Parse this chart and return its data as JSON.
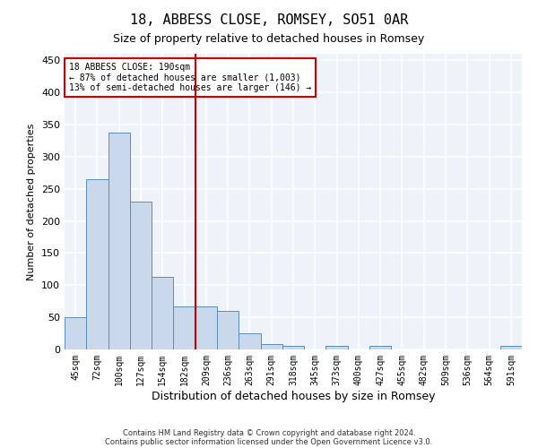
{
  "title": "18, ABBESS CLOSE, ROMSEY, SO51 0AR",
  "subtitle": "Size of property relative to detached houses in Romsey",
  "xlabel": "Distribution of detached houses by size in Romsey",
  "ylabel": "Number of detached properties",
  "footer_line1": "Contains HM Land Registry data © Crown copyright and database right 2024.",
  "footer_line2": "Contains public sector information licensed under the Open Government Licence v3.0.",
  "bar_labels": [
    "45sqm",
    "72sqm",
    "100sqm",
    "127sqm",
    "154sqm",
    "182sqm",
    "209sqm",
    "236sqm",
    "263sqm",
    "291sqm",
    "318sqm",
    "345sqm",
    "373sqm",
    "400sqm",
    "427sqm",
    "455sqm",
    "482sqm",
    "509sqm",
    "536sqm",
    "564sqm",
    "591sqm"
  ],
  "bar_values": [
    50,
    265,
    338,
    230,
    113,
    67,
    67,
    60,
    25,
    8,
    6,
    0,
    5,
    0,
    5,
    0,
    0,
    0,
    0,
    0,
    5
  ],
  "bar_color": "#c9d9eb",
  "bar_edge_color": "#5b8db8",
  "ylim": [
    0,
    460
  ],
  "yticks": [
    0,
    50,
    100,
    150,
    200,
    250,
    300,
    350,
    400,
    450
  ],
  "vline_x": 5.5,
  "vline_color": "#cc0000",
  "annotation_line1": "18 ABBESS CLOSE: 190sqm",
  "annotation_line2": "← 87% of detached houses are smaller (1,003)",
  "annotation_line3": "13% of semi-detached houses are larger (146) →",
  "annotation_box_color": "#cc0000",
  "background_color": "#eef2f9",
  "grid_color": "#ffffff",
  "title_fontsize": 11,
  "subtitle_fontsize": 9,
  "tick_fontsize": 7,
  "ylabel_fontsize": 8,
  "xlabel_fontsize": 9,
  "annotation_fontsize": 7,
  "footer_fontsize": 6
}
